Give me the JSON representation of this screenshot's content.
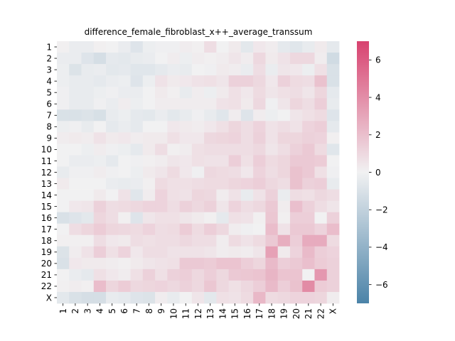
{
  "chart_data": {
    "type": "heatmap",
    "title": "difference_female_fibroblast_x++_average_transsum",
    "xlabel": "",
    "ylabel": "",
    "categories": [
      "1",
      "2",
      "3",
      "4",
      "5",
      "6",
      "7",
      "8",
      "9",
      "10",
      "11",
      "12",
      "13",
      "14",
      "15",
      "16",
      "17",
      "18",
      "19",
      "20",
      "21",
      "22",
      "X"
    ],
    "values": [
      [
        0.1,
        -0.3,
        -0.3,
        0.1,
        0.0,
        -0.3,
        -0.8,
        -0.2,
        -0.1,
        -0.1,
        0.2,
        0.1,
        0.8,
        0.0,
        0.3,
        -0.6,
        0.4,
        0.2,
        -0.5,
        -0.7,
        -0.4,
        0.3,
        -0.5
      ],
      [
        -0.3,
        -0.3,
        -0.8,
        -1.2,
        -0.5,
        -0.6,
        -0.4,
        -0.3,
        0.0,
        0.2,
        -0.2,
        0.2,
        0.1,
        0.2,
        0.5,
        0.2,
        1.0,
        0.3,
        0.6,
        1.0,
        1.0,
        0.2,
        -1.4
      ],
      [
        -0.2,
        -0.9,
        -0.4,
        -0.3,
        -0.6,
        -0.5,
        -0.7,
        -0.7,
        -0.5,
        -0.3,
        -0.4,
        0.0,
        -0.1,
        0.3,
        0.2,
        -0.3,
        0.8,
        -0.3,
        0.5,
        0.4,
        -0.2,
        0.7,
        -1.0
      ],
      [
        -0.2,
        -0.4,
        -0.4,
        -0.5,
        -0.3,
        -0.2,
        -0.8,
        -0.2,
        0.6,
        0.3,
        0.4,
        0.6,
        0.7,
        0.5,
        1.3,
        1.3,
        1.0,
        0.4,
        1.3,
        0.9,
        0.8,
        1.9,
        -1.0
      ],
      [
        -0.1,
        -0.4,
        -0.4,
        -0.2,
        -0.1,
        -0.3,
        -0.3,
        0.0,
        0.3,
        0.1,
        -0.4,
        0.2,
        -0.2,
        0.3,
        0.7,
        0.4,
        0.9,
        0.5,
        0.7,
        0.8,
        0.5,
        1.1,
        -0.5
      ],
      [
        -0.1,
        -0.4,
        -0.4,
        -0.1,
        -0.3,
        0.2,
        -0.2,
        0.0,
        0.2,
        0.2,
        0.2,
        0.2,
        0.2,
        0.6,
        0.7,
        0.3,
        1.0,
        -0.1,
        0.5,
        1.1,
        0.8,
        1.4,
        -0.4
      ],
      [
        -1.0,
        -1.0,
        -0.9,
        -1.1,
        -0.4,
        -0.2,
        -0.5,
        -0.6,
        -0.3,
        -0.6,
        -0.4,
        -0.1,
        -0.4,
        -0.7,
        0.2,
        -0.8,
        0.2,
        -0.2,
        0.0,
        0.5,
        0.7,
        0.9,
        -0.8
      ],
      [
        -0.2,
        -0.1,
        -0.4,
        0.0,
        -0.5,
        -0.3,
        -0.5,
        0.0,
        0.0,
        0.4,
        0.3,
        0.2,
        0.4,
        0.7,
        1.1,
        0.8,
        1.2,
        0.6,
        0.8,
        0.6,
        1.2,
        1.4,
        -0.5
      ],
      [
        0.2,
        0.3,
        0.2,
        0.6,
        0.3,
        0.4,
        0.2,
        0.3,
        0.3,
        0.7,
        0.4,
        0.4,
        1.0,
        1.1,
        1.2,
        0.8,
        1.3,
        0.6,
        1.1,
        1.1,
        1.3,
        1.2,
        0.1
      ],
      [
        0.0,
        0.0,
        -0.2,
        0.2,
        -0.1,
        -0.2,
        -0.5,
        0.3,
        0.8,
        0.1,
        0.2,
        0.7,
        0.8,
        0.8,
        0.8,
        0.8,
        1.0,
        0.5,
        0.8,
        1.3,
        1.6,
        0.9,
        -0.7
      ],
      [
        0.0,
        -0.3,
        -0.3,
        -0.2,
        -0.5,
        0.0,
        -0.1,
        0.1,
        0.2,
        0.5,
        0.4,
        0.7,
        0.6,
        0.6,
        1.4,
        0.7,
        1.4,
        0.9,
        1.1,
        1.6,
        1.6,
        1.5,
        0.0
      ],
      [
        -0.4,
        -0.1,
        -0.1,
        0.2,
        -0.1,
        0.0,
        -0.2,
        0.3,
        0.5,
        0.9,
        0.4,
        -0.1,
        1.0,
        0.9,
        0.8,
        0.4,
        1.2,
        0.8,
        1.1,
        1.9,
        1.6,
        0.7,
        -0.1
      ],
      [
        0.3,
        0.0,
        0.0,
        0.0,
        -0.3,
        -0.4,
        -0.3,
        0.1,
        0.9,
        0.7,
        0.7,
        0.8,
        0.9,
        0.9,
        1.1,
        1.2,
        1.4,
        1.0,
        0.8,
        1.9,
        1.3,
        1.4,
        -0.4
      ],
      [
        0.0,
        0.0,
        0.0,
        0.3,
        0.0,
        0.6,
        -0.7,
        0.2,
        1.2,
        0.7,
        0.6,
        1.1,
        1.0,
        0.2,
        0.6,
        -0.4,
        0.6,
        1.3,
        -0.3,
        0.8,
        0.7,
        1.0,
        0.8
      ],
      [
        0.0,
        0.4,
        0.5,
        1.3,
        0.8,
        0.9,
        1.0,
        1.2,
        1.2,
        0.8,
        1.3,
        1.0,
        1.3,
        0.5,
        1.2,
        0.8,
        1.0,
        1.6,
        0.2,
        2.0,
        1.3,
        0.8,
        0.5
      ],
      [
        -1.0,
        -0.8,
        -0.6,
        1.1,
        0.8,
        0.1,
        -0.8,
        0.5,
        0.7,
        0.7,
        0.5,
        0.3,
        0.1,
        -0.5,
        0.7,
        0.6,
        0.1,
        1.7,
        0.1,
        1.4,
        1.4,
        0.0,
        1.3
      ],
      [
        0.0,
        0.8,
        1.1,
        1.5,
        1.1,
        1.0,
        0.9,
        1.2,
        0.8,
        0.9,
        1.5,
        0.9,
        1.4,
        1.0,
        0.2,
        -0.1,
        0.0,
        2.1,
        0.6,
        1.6,
        1.6,
        1.2,
        2.1
      ],
      [
        0.1,
        0.1,
        0.1,
        0.8,
        0.4,
        0.3,
        0.8,
        0.7,
        0.8,
        0.8,
        1.0,
        0.8,
        0.8,
        0.2,
        0.9,
        0.6,
        0.9,
        1.6,
        2.7,
        1.4,
        2.8,
        2.8,
        0.9
      ],
      [
        -0.9,
        0.2,
        0.6,
        1.4,
        0.7,
        1.2,
        0.4,
        0.8,
        0.8,
        0.6,
        0.6,
        0.6,
        0.5,
        0.2,
        0.3,
        0.2,
        0.5,
        3.2,
        0.3,
        1.2,
        2.2,
        1.4,
        1.2
      ],
      [
        -1.0,
        0.4,
        0.3,
        0.3,
        0.2,
        0.1,
        0.3,
        0.5,
        0.6,
        0.7,
        1.6,
        1.6,
        1.5,
        1.8,
        1.8,
        1.4,
        1.1,
        2.2,
        1.4,
        1.6,
        2.0,
        1.5,
        1.3
      ],
      [
        0.0,
        -0.3,
        -0.5,
        0.7,
        0.4,
        0.2,
        0.7,
        1.3,
        0.7,
        1.3,
        1.4,
        1.0,
        1.4,
        1.0,
        1.6,
        1.7,
        1.8,
        2.4,
        1.8,
        1.8,
        0.0,
        3.6,
        1.3
      ],
      [
        0.1,
        0.2,
        0.1,
        2.1,
        1.1,
        1.5,
        1.0,
        1.1,
        1.2,
        1.0,
        1.3,
        1.0,
        1.7,
        1.0,
        0.7,
        1.0,
        1.4,
        2.2,
        1.4,
        1.9,
        4.1,
        1.5,
        1.3
      ],
      [
        -0.6,
        -1.0,
        -1.2,
        -1.2,
        -0.4,
        -0.5,
        -0.8,
        -0.9,
        0.2,
        -0.4,
        0.0,
        0.5,
        -0.6,
        0.7,
        0.6,
        0.9,
        2.3,
        0.9,
        1.0,
        1.2,
        1.2,
        1.1,
        0.2
      ]
    ],
    "vmin": -7,
    "vmax": 7,
    "colorbar_ticks": [
      -6,
      -4,
      -2,
      0,
      2,
      4,
      6
    ],
    "colors": {
      "negative": "#4b83a8",
      "center": "#f1f1f2",
      "positive": "#d8426f"
    }
  }
}
